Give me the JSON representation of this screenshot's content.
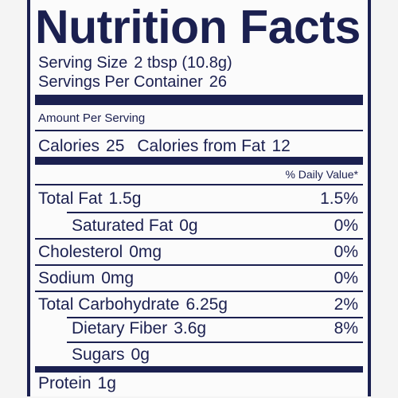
{
  "title": "Nutrition Facts",
  "serving_size": {
    "label": "Serving Size",
    "value": "2 tbsp (10.8g)"
  },
  "servings_per_container": {
    "label": "Servings Per Container",
    "value": "26"
  },
  "amount_per_serving": "Amount Per Serving",
  "calories": {
    "label": "Calories",
    "value": "25",
    "from_fat_label": "Calories from Fat",
    "from_fat_value": "12"
  },
  "daily_value_header": "% Daily Value*",
  "rows": [
    {
      "label": "Total Fat",
      "amount": "1.5g",
      "dv": "1.5%"
    },
    {
      "label": "Saturated Fat",
      "amount": "0g",
      "dv": "0%"
    },
    {
      "label": "Cholesterol",
      "amount": "0mg",
      "dv": "0%"
    },
    {
      "label": "Sodium",
      "amount": "0mg",
      "dv": "0%"
    },
    {
      "label": "Total Carbohydrate",
      "amount": "6.25g",
      "dv": "2%"
    },
    {
      "label": "Dietary Fiber",
      "amount": "3.6g",
      "dv": "8%"
    },
    {
      "label": "Sugars",
      "amount": "0g"
    },
    {
      "label": "Protein",
      "amount": "1g"
    }
  ]
}
